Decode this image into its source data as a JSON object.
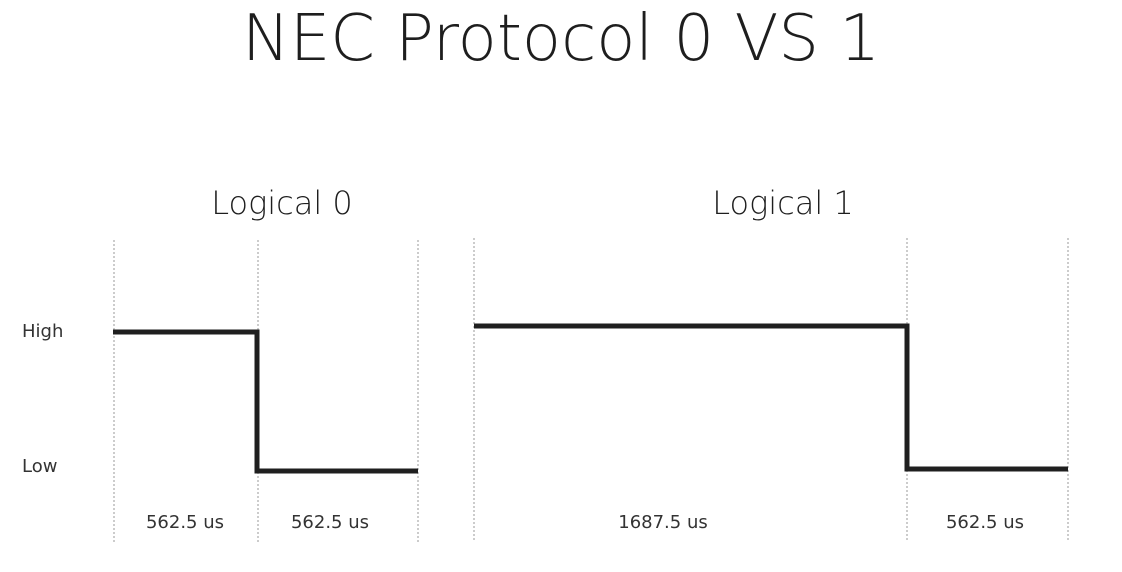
{
  "title": "NEC Protocol 0 VS 1",
  "levels": {
    "high": "High",
    "low": "Low"
  },
  "logical0": {
    "label": "Logical 0",
    "segments": [
      {
        "level": "high",
        "duration_us": 562.5,
        "label": "562.5 us"
      },
      {
        "level": "low",
        "duration_us": 562.5,
        "label": "562.5 us"
      }
    ]
  },
  "logical1": {
    "label": "Logical 1",
    "segments": [
      {
        "level": "high",
        "duration_us": 1687.5,
        "label": "1687.5 us"
      },
      {
        "level": "low",
        "duration_us": 562.5,
        "label": "562.5 us"
      }
    ]
  },
  "colors": {
    "signal": "#1f1f1f",
    "guide": "#999999"
  }
}
